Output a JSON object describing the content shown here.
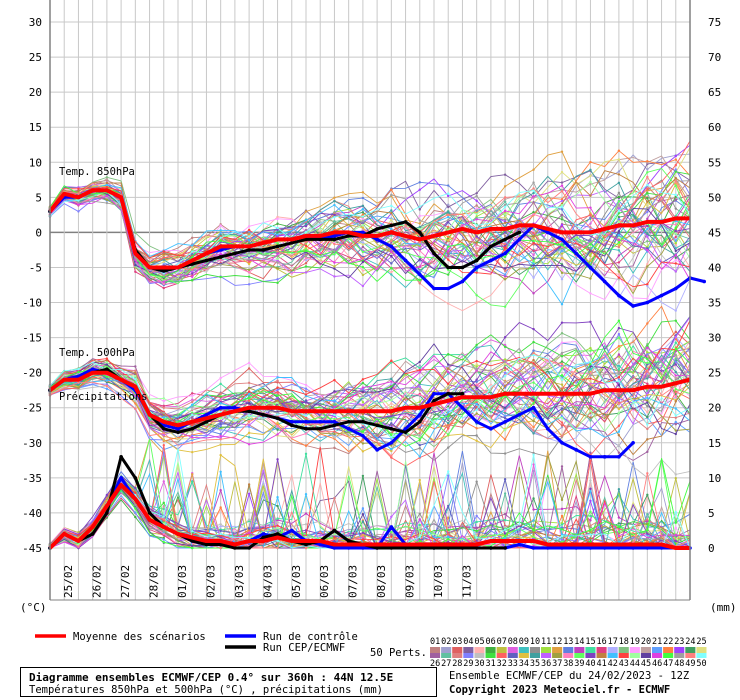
{
  "chart_data": {
    "type": "line",
    "left_unit": "(°C)",
    "right_unit": "(mm)",
    "left_ticks": [
      30,
      25,
      20,
      15,
      10,
      5,
      0,
      -5,
      -10,
      -15,
      -20,
      -25,
      -30,
      -35,
      -40,
      -45
    ],
    "right_ticks": [
      75,
      70,
      65,
      60,
      55,
      50,
      45,
      40,
      35,
      30,
      25,
      20,
      15,
      10,
      5,
      0
    ],
    "left_ylim": [
      -45,
      30
    ],
    "right_ylim": [
      0,
      75
    ],
    "x_start": "2023-02-24",
    "x_labels": [
      "25/02",
      "26/02",
      "27/02",
      "28/02",
      "01/03",
      "02/03",
      "03/03",
      "04/03",
      "05/03",
      "06/03",
      "07/03",
      "08/03",
      "09/03",
      "10/03",
      "11/03"
    ],
    "panel_labels": {
      "t850": "Temp. 850hPa",
      "t500": "Temp. 500hPa",
      "precip": "Précipitations"
    },
    "series": [
      {
        "name": "Moyenne des scénarios",
        "color": "#ff0000",
        "t850": [
          3,
          5.5,
          5,
          6,
          6,
          5,
          -3,
          -5,
          -5,
          -5,
          -4,
          -3,
          -2,
          -2,
          -2,
          -1.5,
          -1,
          -1,
          -0.5,
          -0.5,
          0,
          0,
          -0.5,
          -0.5,
          0,
          -0.5,
          -1,
          -0.5,
          0,
          0.5,
          0,
          0.5,
          0.5,
          1,
          1,
          0.5,
          0,
          0,
          0,
          0.5,
          1,
          1,
          1.5,
          1.5,
          2,
          2
        ],
        "t500": [
          -22.5,
          -21,
          -21,
          -20,
          -20,
          -21,
          -22,
          -26,
          -27,
          -27.5,
          -27,
          -26.5,
          -26,
          -25.5,
          -25,
          -25,
          -25,
          -25.5,
          -25.5,
          -25.5,
          -25.5,
          -25.5,
          -25.5,
          -25.5,
          -25.5,
          -25,
          -25,
          -24.5,
          -24,
          -23.5,
          -23.5,
          -23.5,
          -23,
          -23,
          -23,
          -23,
          -23,
          -23,
          -23,
          -22.5,
          -22.5,
          -22.5,
          -22,
          -22,
          -21.5,
          -21
        ],
        "precip": [
          0,
          2,
          1,
          3,
          6,
          9,
          7,
          4,
          3,
          2,
          1.5,
          1,
          1,
          0.5,
          1,
          1,
          1.5,
          1,
          1,
          1,
          0.5,
          0.5,
          0.5,
          0.5,
          0.5,
          0.5,
          0.5,
          0.5,
          0.5,
          0.5,
          0.5,
          1,
          1,
          1,
          1,
          0.5,
          0.5,
          0.5,
          0.5,
          0.5,
          0.5,
          0.5,
          0.5,
          0.5,
          0,
          0
        ]
      },
      {
        "name": "Run de contrôle",
        "color": "#0000ff",
        "t850": [
          3,
          5,
          5,
          6,
          6,
          5,
          -3,
          -5,
          -5.5,
          -5,
          -4,
          -3,
          -2.5,
          -2,
          -2,
          -1.5,
          -1,
          -1,
          -0.5,
          -1,
          -0.5,
          0,
          0,
          -1,
          -2,
          -4,
          -6,
          -8,
          -8,
          -7,
          -5,
          -4,
          -3,
          -1,
          1,
          0,
          -1,
          -3,
          -5,
          -7,
          -9,
          -10.5,
          -10,
          -9,
          -8,
          -6.5,
          -7
        ],
        "t500": [
          -22.5,
          -21,
          -20.5,
          -19.5,
          -20,
          -21,
          -22.5,
          -26,
          -27.5,
          -28,
          -27,
          -26,
          -25,
          -25,
          -25.5,
          -26,
          -26.5,
          -27,
          -27,
          -27,
          -27,
          -28,
          -29,
          -31,
          -30,
          -28,
          -26,
          -23,
          -23,
          -25,
          -27,
          -28,
          -27,
          -26,
          -25,
          -28,
          -30,
          -31,
          -32,
          -32,
          -32,
          -30
        ],
        "precip": [
          0,
          2,
          1,
          3,
          6,
          10,
          7,
          4,
          3,
          2,
          1,
          0.5,
          0.5,
          0.5,
          1,
          2,
          1.5,
          2.5,
          1,
          0.5,
          0,
          0,
          0,
          0,
          3,
          0.5,
          0,
          0,
          0,
          0,
          0,
          0,
          0,
          0.5,
          0,
          0,
          0,
          0,
          0,
          0,
          0,
          0,
          0,
          0,
          0,
          0
        ]
      },
      {
        "name": "Run CEP/ECMWF",
        "color": "#000000",
        "t850": [
          3,
          5.5,
          5,
          6,
          6,
          5,
          -2.5,
          -5,
          -5.5,
          -5,
          -4.5,
          -4,
          -3.5,
          -3,
          -2.5,
          -2.5,
          -2,
          -1.5,
          -1,
          -1,
          -1,
          -0.5,
          -0.5,
          0.5,
          1,
          1.5,
          0,
          -3,
          -5,
          -5,
          -4,
          -2,
          -1,
          0
        ],
        "t500": [
          -22.5,
          -21,
          -21,
          -20,
          -19.5,
          -21,
          -22,
          -26,
          -28,
          -28.5,
          -28,
          -27,
          -26,
          -25.5,
          -25.5,
          -26,
          -26.5,
          -27.5,
          -28,
          -28,
          -27.5,
          -27,
          -27,
          -27.5,
          -28,
          -28.5,
          -27,
          -24,
          -23,
          -23
        ],
        "precip": [
          0,
          2,
          1,
          2,
          5,
          13,
          10,
          5,
          3,
          2,
          1,
          0.5,
          0.5,
          0,
          0,
          1.5,
          2,
          1,
          0.5,
          1,
          2.5,
          1,
          0.5,
          0,
          0,
          0,
          0,
          0,
          0,
          0,
          0,
          0,
          0
        ]
      }
    ]
  },
  "legend": {
    "items": [
      {
        "label": "Moyenne des scénarios",
        "color": "#ff0000"
      },
      {
        "label": "Run de contrôle",
        "color": "#0000ff"
      },
      {
        "label": "Run CEP/ECMWF",
        "color": "#000000"
      }
    ],
    "perturbations_label": "50 Perts.",
    "pert_codes_top": [
      "01",
      "02",
      "03",
      "04",
      "05",
      "06",
      "07",
      "08",
      "09",
      "10",
      "11",
      "12",
      "13",
      "14",
      "15",
      "16",
      "17",
      "18",
      "19",
      "20",
      "21",
      "22",
      "23",
      "24",
      "25"
    ],
    "pert_codes_bottom": [
      "26",
      "27",
      "28",
      "29",
      "30",
      "31",
      "32",
      "33",
      "34",
      "35",
      "36",
      "37",
      "38",
      "39",
      "40",
      "41",
      "42",
      "43",
      "44",
      "45",
      "46",
      "47",
      "48",
      "49",
      "50"
    ],
    "pert_colors_top": [
      "#c08080",
      "#a0a0d0",
      "#e06060",
      "#8060a0",
      "#ffb0b0",
      "#40b040",
      "#c0c040",
      "#e060e0",
      "#40c0c0",
      "#909090",
      "#a0e040",
      "#e0a040",
      "#6080e0",
      "#c040c0",
      "#40e0a0",
      "#e04080",
      "#b0b0ff",
      "#80c080",
      "#ffa0ff",
      "#c0a0a0",
      "#60a0ff",
      "#ff8040",
      "#a040ff",
      "#40a060",
      "#e0e080"
    ],
    "pert_colors_bottom": [
      "#a060a0",
      "#60c0a0",
      "#e08080",
      "#8080ff",
      "#c0c0c0",
      "#40e040",
      "#ff6060",
      "#6060c0",
      "#e0c040",
      "#40a0a0",
      "#c060ff",
      "#a0a040",
      "#ff80c0",
      "#60ff60",
      "#8040c0",
      "#c08040",
      "#40c0ff",
      "#ff4040",
      "#a0ffa0",
      "#6040a0",
      "#e040e0",
      "#40ff40",
      "#a0a0a0",
      "#ff8080",
      "#80ffff"
    ]
  },
  "info": {
    "title": "Diagramme ensembles ECMWF/CEP 0.4° sur 360h : 44N 12.5E",
    "subtitle": "Températures 850hPa et 500hPa (°C) , précipitations (mm)",
    "run": "Ensemble ECMWF/CEP du 24/02/2023 - 12Z",
    "copyright": "Copyright 2023 Meteociel.fr - ECMWF"
  }
}
